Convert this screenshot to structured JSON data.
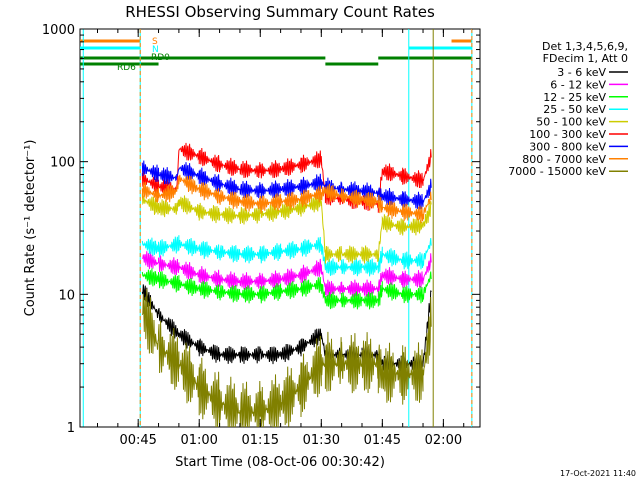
{
  "chart_data": {
    "type": "line",
    "title": "RHESSI Observing Summary Count Rates",
    "xlabel": "Start Time (08-Oct-06 00:30:42)",
    "ylabel": "Count Rate (s⁻¹ detector⁻¹)",
    "y_scale": "log",
    "ylim": [
      1,
      1000
    ],
    "xlim": [
      "00:30:42",
      "02:09:00"
    ],
    "x_unit": "time (HH:MM, 08-Oct-06)",
    "grid": false,
    "legend_position": "right",
    "x_ticks": [
      "00:45",
      "01:00",
      "01:15",
      "01:30",
      "01:45",
      "02:00"
    ],
    "y_ticks": [
      "1",
      "10",
      "100",
      "1000"
    ],
    "legend_header": [
      "Det 1,3,4,5,6,9,",
      "FDecim 1, Att 0"
    ],
    "timestamp": "17-Oct-2021 11:40",
    "flag_labels": [
      "S",
      "N",
      "RD0",
      "RD6"
    ],
    "series": [
      {
        "name": "3 - 6 keV",
        "color": "#000000",
        "x": [
          "00:46:00",
          "00:50:00",
          "00:55:00",
          "01:00:00",
          "01:05:00",
          "01:10:00",
          "01:15:00",
          "01:20:00",
          "01:25:00",
          "01:30:00",
          "01:31:00",
          "01:35:00",
          "01:40:00",
          "01:44:00",
          "01:45:00",
          "01:50:00",
          "01:55:00",
          "01:57:00"
        ],
        "y": [
          11,
          7,
          5,
          4,
          3.5,
          3.5,
          3.5,
          3.5,
          4,
          5,
          3.5,
          3.5,
          3.5,
          3.5,
          3,
          3,
          3,
          10
        ]
      },
      {
        "name": "6 - 12 keV",
        "color": "#ff00ff",
        "x": [
          "00:46:00",
          "00:50:00",
          "00:55:00",
          "01:00:00",
          "01:05:00",
          "01:10:00",
          "01:15:00",
          "01:20:00",
          "01:25:00",
          "01:30:00",
          "01:31:00",
          "01:35:00",
          "01:40:00",
          "01:44:00",
          "01:45:00",
          "01:50:00",
          "01:55:00",
          "01:57:00"
        ],
        "y": [
          19,
          17,
          16,
          14,
          13,
          12.5,
          12.5,
          13,
          14,
          16,
          11,
          11,
          11,
          11,
          14,
          13,
          13,
          18
        ]
      },
      {
        "name": "12 - 25 keV",
        "color": "#00ff00",
        "x": [
          "00:46:00",
          "00:50:00",
          "00:55:00",
          "01:00:00",
          "01:05:00",
          "01:10:00",
          "01:15:00",
          "01:20:00",
          "01:25:00",
          "01:30:00",
          "01:31:00",
          "01:35:00",
          "01:40:00",
          "01:44:00",
          "01:45:00",
          "01:50:00",
          "01:55:00",
          "01:57:00"
        ],
        "y": [
          14,
          13,
          12,
          11,
          10.5,
          10,
          10,
          10.5,
          11,
          12,
          9,
          9,
          9,
          9,
          11,
          10,
          10,
          14
        ]
      },
      {
        "name": "25 - 50 keV",
        "color": "#00ffff",
        "x": [
          "00:46:00",
          "00:50:00",
          "00:55:00",
          "01:00:00",
          "01:05:00",
          "01:10:00",
          "01:15:00",
          "01:20:00",
          "01:25:00",
          "01:30:00",
          "01:31:00",
          "01:35:00",
          "01:40:00",
          "01:44:00",
          "01:45:00",
          "01:50:00",
          "01:55:00",
          "01:57:00"
        ],
        "y": [
          24,
          22,
          24,
          22,
          21,
          20,
          20,
          21,
          22,
          24,
          16,
          16,
          16,
          16,
          20,
          18,
          18,
          25
        ]
      },
      {
        "name": "50 - 100 keV",
        "color": "#cccc00",
        "x": [
          "00:46:00",
          "00:50:00",
          "00:54:30",
          "00:55:00",
          "01:00:00",
          "01:05:00",
          "01:10:00",
          "01:15:00",
          "01:20:00",
          "01:25:00",
          "01:30:00",
          "01:31:00",
          "01:35:00",
          "01:40:00",
          "01:44:00",
          "01:45:00",
          "01:50:00",
          "01:55:00",
          "01:57:00"
        ],
        "y": [
          52,
          45,
          44,
          50,
          42,
          40,
          39,
          40,
          42,
          45,
          50,
          20,
          20,
          20,
          20,
          35,
          32,
          33,
          45
        ]
      },
      {
        "name": "100 - 300 keV",
        "color": "#ff0000",
        "x": [
          "00:46:00",
          "00:50:00",
          "00:54:30",
          "00:55:00",
          "01:00:00",
          "01:05:00",
          "01:10:00",
          "01:15:00",
          "01:20:00",
          "01:25:00",
          "01:30:00",
          "01:31:00",
          "01:35:00",
          "01:40:00",
          "01:44:00",
          "01:45:00",
          "01:50:00",
          "01:55:00",
          "01:57:00"
        ],
        "y": [
          75,
          65,
          62,
          125,
          110,
          95,
          88,
          85,
          88,
          95,
          105,
          55,
          52,
          50,
          48,
          85,
          78,
          72,
          110
        ]
      },
      {
        "name": "300 - 800 keV",
        "color": "#0000ff",
        "x": [
          "00:46:00",
          "00:50:00",
          "00:54:30",
          "00:55:00",
          "01:00:00",
          "01:05:00",
          "01:10:00",
          "01:15:00",
          "01:20:00",
          "01:25:00",
          "01:30:00",
          "01:31:00",
          "01:35:00",
          "01:40:00",
          "01:44:00",
          "01:45:00",
          "01:50:00",
          "01:55:00",
          "01:57:00"
        ],
        "y": [
          90,
          80,
          75,
          90,
          78,
          68,
          62,
          60,
          62,
          65,
          70,
          65,
          62,
          60,
          58,
          55,
          52,
          50,
          65
        ]
      },
      {
        "name": "800 - 7000 keV",
        "color": "#ff8000",
        "x": [
          "00:46:00",
          "00:50:00",
          "00:54:30",
          "00:55:00",
          "01:00:00",
          "01:05:00",
          "01:10:00",
          "01:15:00",
          "01:20:00",
          "01:25:00",
          "01:30:00",
          "01:31:00",
          "01:35:00",
          "01:40:00",
          "01:44:00",
          "01:45:00",
          "01:50:00",
          "01:55:00",
          "01:57:00"
        ],
        "y": [
          62,
          55,
          60,
          75,
          62,
          55,
          50,
          48,
          50,
          52,
          58,
          60,
          55,
          52,
          50,
          45,
          42,
          40,
          55
        ]
      },
      {
        "name": "7000 - 15000 keV",
        "color": "#808000",
        "x": [
          "00:46:00",
          "00:50:00",
          "00:55:00",
          "01:00:00",
          "01:05:00",
          "01:10:00",
          "01:15:00",
          "01:20:00",
          "01:25:00",
          "01:30:00",
          "01:31:00",
          "01:35:00",
          "01:40:00",
          "01:44:00",
          "01:45:00",
          "01:50:00",
          "01:55:00",
          "01:57:00"
        ],
        "y": [
          8,
          4,
          3,
          2,
          1.5,
          1.3,
          1.3,
          1.5,
          2,
          3,
          3,
          3,
          3,
          3,
          2.5,
          2.5,
          2.5,
          6
        ]
      }
    ],
    "vertical_markers": [
      {
        "x": "00:31:30",
        "color": "#00ffff"
      },
      {
        "x": "00:45:30",
        "color": "#00ffff"
      },
      {
        "x": "00:45:30",
        "color": "#ff8000"
      },
      {
        "x": "01:51:30",
        "color": "#00ffff"
      },
      {
        "x": "01:57:30",
        "color": "#808000"
      },
      {
        "x": "02:07:00",
        "color": "#00ffff"
      },
      {
        "x": "02:07:00",
        "color": "#ff8000"
      }
    ],
    "flag_bars": [
      {
        "label": "S",
        "color": "#ff8000",
        "level": 0,
        "segments": [
          [
            "00:30:42",
            "00:45:30"
          ],
          [
            "02:02:00",
            "02:07:00"
          ]
        ]
      },
      {
        "label": "N",
        "color": "#00ffff",
        "level": 1,
        "segments": [
          [
            "00:30:42",
            "00:45:30"
          ],
          [
            "01:51:30",
            "02:07:00"
          ]
        ]
      },
      {
        "label": "RD0",
        "color": "#008000",
        "level": 2,
        "segments": [
          [
            "00:30:42",
            "01:31:00"
          ],
          [
            "01:44:00",
            "02:07:00"
          ]
        ]
      },
      {
        "label": "RD6",
        "color": "#008000",
        "level": 3,
        "segments": [
          [
            "00:30:42",
            "00:50:00"
          ],
          [
            "01:31:00",
            "01:44:00"
          ]
        ]
      }
    ]
  }
}
